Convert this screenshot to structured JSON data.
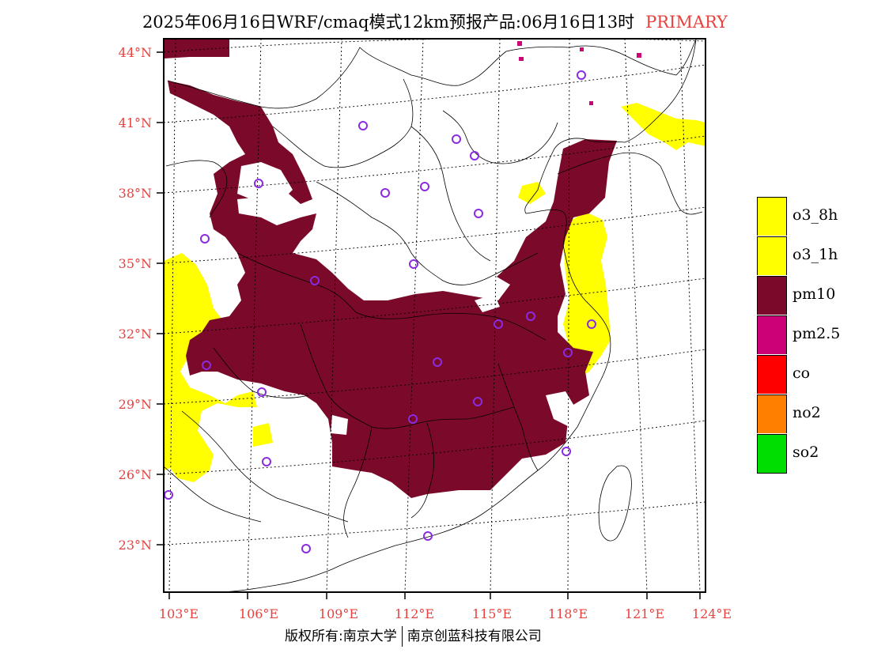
{
  "title": {
    "main": "2025年06月16日WRF/cmaq模式12km预报产品:06月16日13时",
    "tag": "PRIMARY"
  },
  "axes": {
    "lat_labels": [
      "44°N",
      "41°N",
      "38°N",
      "35°N",
      "32°N",
      "29°N",
      "26°N",
      "23°N"
    ],
    "lon_labels": [
      "103°E",
      "106°E",
      "109°E",
      "112°E",
      "115°E",
      "118°E",
      "121°E",
      "124°E"
    ]
  },
  "legend": [
    {
      "label": "o3_8h",
      "color": "#ffff00"
    },
    {
      "label": "o3_1h",
      "color": "#ffff00"
    },
    {
      "label": "pm10",
      "color": "#7b0a2a"
    },
    {
      "label": "pm2.5",
      "color": "#cc0077"
    },
    {
      "label": "co",
      "color": "#ff0000"
    },
    {
      "label": "no2",
      "color": "#ff8000"
    },
    {
      "label": "so2",
      "color": "#00dd00"
    }
  ],
  "colors": {
    "pm10": "#7b0a2a",
    "o3": "#ffff00",
    "pm25": "#cc0077",
    "axis_label": "#e8413e",
    "station": "#8a2be2"
  },
  "footer": {
    "left": "版权所有:南京大学",
    "right": "南京创蓝科技有限公司"
  }
}
